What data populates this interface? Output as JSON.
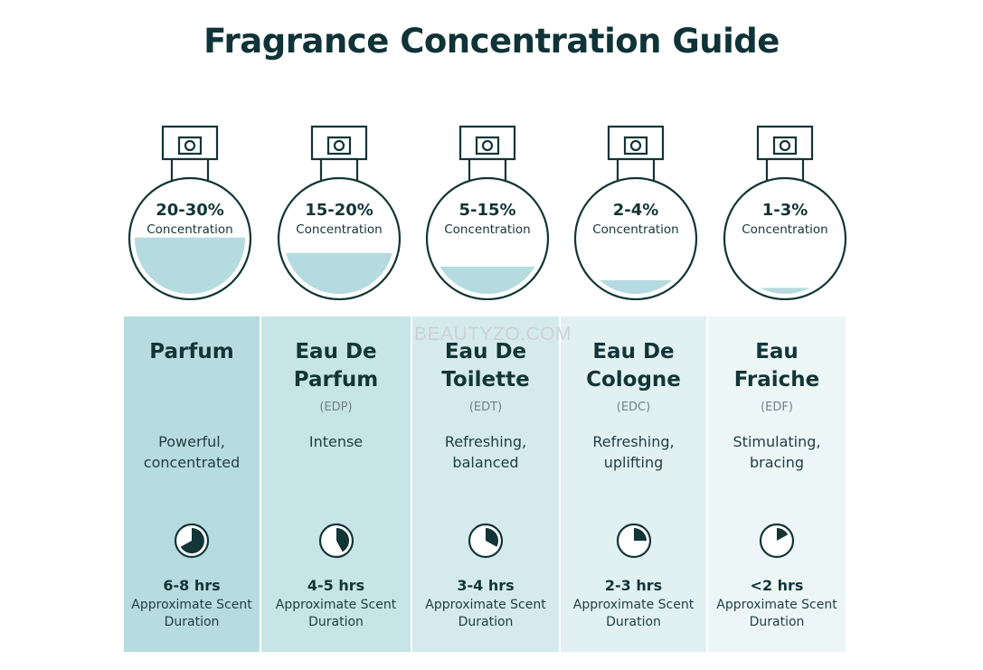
{
  "title": "Fragrance Concentration Guide",
  "watermark": "BEAUTYZO.COM",
  "colors": {
    "dark_teal": "#123536",
    "liquid": "#b4dbdf",
    "column_bg": [
      "#b7dcdf",
      "#c7e4e6",
      "#d4eaec",
      "#e1f1f2",
      "#ecf6f7"
    ]
  },
  "fragrances": [
    {
      "concentration": "20-30%",
      "concentration_label": "Concentration",
      "fill_fraction": 0.3,
      "name": "Parfum",
      "abbreviation": "",
      "description": "Powerful, concentrated",
      "duration": "6-8 hrs",
      "duration_label": "Approximate Scent Duration",
      "clock_fraction": 0.67
    },
    {
      "concentration": "15-20%",
      "concentration_label": "Concentration",
      "fill_fraction": 0.22,
      "name": "Eau De Parfum",
      "abbreviation": "(EDP)",
      "description": "Intense",
      "duration": "4-5 hrs",
      "duration_label": "Approximate Scent Duration",
      "clock_fraction": 0.42
    },
    {
      "concentration": "5-15%",
      "concentration_label": "Concentration",
      "fill_fraction": 0.15,
      "name": "Eau De Toilette",
      "abbreviation": "(EDT)",
      "description": "Refreshing, balanced",
      "duration": "3-4 hrs",
      "duration_label": "Approximate Scent Duration",
      "clock_fraction": 0.33
    },
    {
      "concentration": "2-4%",
      "concentration_label": "Concentration",
      "fill_fraction": 0.08,
      "name": "Eau De Cologne",
      "abbreviation": "(EDC)",
      "description": "Refreshing, uplifting",
      "duration": "2-3 hrs",
      "duration_label": "Approximate Scent Duration",
      "clock_fraction": 0.25
    },
    {
      "concentration": "1-3%",
      "concentration_label": "Concentration",
      "fill_fraction": 0.04,
      "name": "Eau Fraiche",
      "abbreviation": "(EDF)",
      "description": "Stimulating, bracing",
      "duration": "<2 hrs",
      "duration_label": "Approximate Scent Duration",
      "clock_fraction": 0.17
    }
  ]
}
